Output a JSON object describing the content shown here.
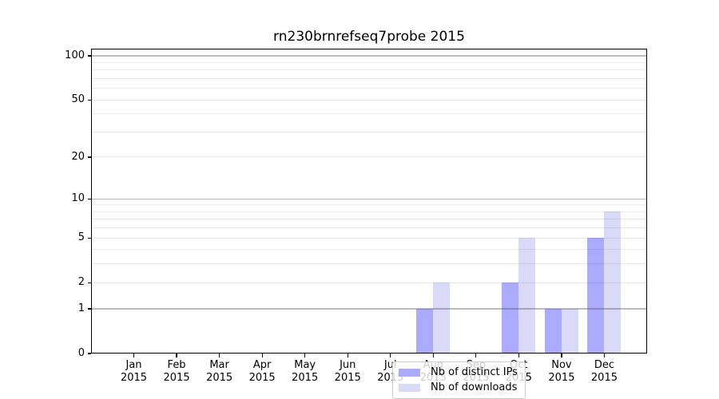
{
  "chart_data": {
    "type": "bar",
    "title": "rn230brnrefseq7probe 2015",
    "categories": [
      "Jan",
      "Feb",
      "Mar",
      "Apr",
      "May",
      "Jun",
      "Jul",
      "Aug",
      "Sep",
      "Oct",
      "Nov",
      "Dec"
    ],
    "xtick_year": "2015",
    "series": [
      {
        "name": "Nb of distinct IPs",
        "color": "#aaaaff",
        "values": [
          0,
          0,
          0,
          0,
          0,
          0,
          0,
          1,
          0,
          2,
          1,
          5
        ]
      },
      {
        "name": "Nb of downloads",
        "color": "#d9d9f8",
        "values": [
          0,
          0,
          0,
          0,
          0,
          0,
          0,
          2,
          0,
          5,
          1,
          8
        ]
      }
    ],
    "yscale": "log1p",
    "ylim": [
      0,
      101
    ],
    "ytick_values": [
      0,
      1,
      2,
      5,
      10,
      20,
      50,
      100
    ],
    "ytick_labels": [
      "0",
      "1",
      "2",
      "5",
      "10",
      "20",
      "50",
      "100"
    ],
    "grid": "horizontal",
    "grid_major_values": [
      1,
      10,
      100
    ],
    "grid_minor_values": [
      2,
      3,
      4,
      5,
      6,
      7,
      8,
      9,
      20,
      30,
      40,
      50,
      60,
      70,
      80,
      90
    ],
    "legend": {
      "position": "bottom-center",
      "entries": [
        "Nb of distinct IPs",
        "Nb of downloads"
      ]
    }
  },
  "colors": {
    "ips_bar": "#aaaaff",
    "downloads_bar": "#d9d9f8",
    "grid_major": "#c2c2c2",
    "grid_minor": "#ededed",
    "spine": "#000000",
    "legend_border": "#cccccc"
  }
}
